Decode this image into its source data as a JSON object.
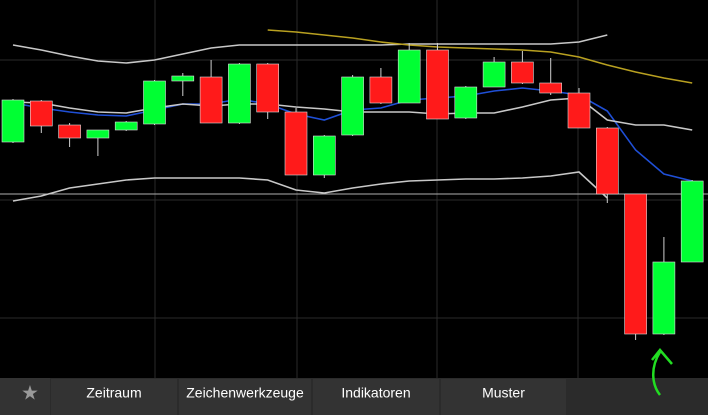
{
  "chart_data": {
    "type": "candlestick",
    "ylim": [
      0,
      378
    ],
    "up_color": "#00ff33",
    "down_color": "#ff1a1a",
    "wick_color": "#d0d0d0",
    "open": [
      236,
      277,
      253,
      240,
      248,
      254,
      297,
      301,
      255,
      314,
      266,
      203,
      243,
      301,
      275,
      328,
      260,
      291,
      316,
      295,
      285,
      250,
      184,
      44,
      116
    ],
    "high": [
      279,
      278,
      255,
      248,
      257,
      298,
      305,
      318,
      315,
      315,
      270,
      243,
      303,
      310,
      335,
      335,
      292,
      321,
      327,
      320,
      290,
      251,
      184,
      141,
      198
    ],
    "low": [
      235,
      245,
      231,
      222,
      247,
      253,
      282,
      255,
      254,
      259,
      203,
      200,
      242,
      274,
      275,
      259,
      259,
      291,
      294,
      283,
      250,
      175,
      38,
      43,
      116
    ],
    "close": [
      278,
      252,
      240,
      248,
      256,
      297,
      302,
      255,
      314,
      266,
      203,
      242,
      301,
      275,
      328,
      259,
      291,
      316,
      295,
      285,
      250,
      184,
      44,
      116,
      197
    ],
    "lines": [
      {
        "color": "#1f4fd6",
        "values": [
          275,
          270,
          266,
          263,
          262,
          268,
          274,
          274,
          279,
          274,
          264,
          258,
          268,
          270,
          278,
          280,
          282,
          287,
          290,
          287,
          283,
          267,
          228,
          204,
          197
        ]
      },
      {
        "color": "#c8c8c8",
        "values": [
          276,
          275,
          270,
          266,
          265,
          270,
          274,
          272,
          274,
          274,
          271,
          269,
          266,
          266,
          266,
          264,
          265,
          265,
          271,
          278,
          280,
          258,
          253,
          253,
          248
        ]
      },
      {
        "color": "#c8c8c8",
        "values": [
          333,
          328,
          322,
          317,
          315,
          318,
          324,
          330,
          333,
          333,
          333,
          333,
          333,
          333,
          334,
          334,
          334,
          334,
          334,
          334,
          336,
          343,
          null,
          null,
          null
        ]
      },
      {
        "color": "#c8c8c8",
        "values": [
          177,
          182,
          190,
          194,
          198,
          200,
          200,
          200,
          200,
          198,
          188,
          185,
          190,
          194,
          197,
          198,
          199,
          199,
          200,
          202,
          206,
          180,
          null,
          null,
          null
        ]
      },
      {
        "color": "#b8a020",
        "values": [
          null,
          null,
          null,
          null,
          null,
          null,
          null,
          null,
          null,
          348,
          346,
          343,
          340,
          336,
          333,
          331,
          330,
          329,
          328,
          326,
          321,
          313,
          306,
          300,
          295
        ]
      }
    ],
    "level": 184,
    "level_color": "#b0b0b0"
  },
  "toolbar": {
    "buttons": [
      "Zeitraum",
      "Zeichenwerkzeuge",
      "Indikatoren",
      "Muster"
    ]
  }
}
